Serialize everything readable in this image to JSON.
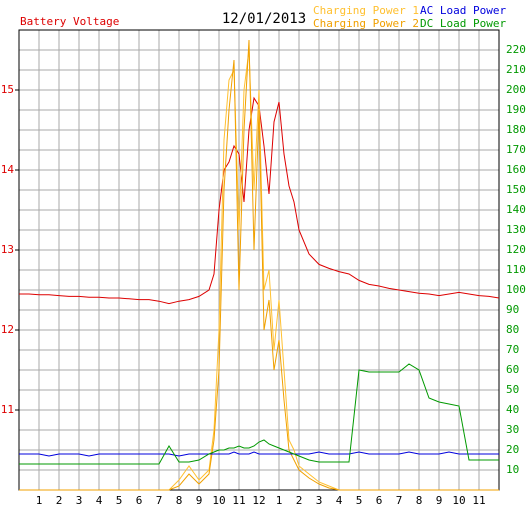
{
  "chart_data": {
    "type": "line",
    "title": "12/01/2013",
    "ylabel": "Battery Voltage",
    "x": [
      0,
      0.5,
      1,
      1.5,
      2,
      2.5,
      3,
      3.5,
      4,
      4.5,
      5,
      5.5,
      6,
      6.5,
      7,
      7.5,
      8,
      8.5,
      9,
      9.5,
      9.75,
      10,
      10.25,
      10.5,
      10.75,
      11,
      11.25,
      11.5,
      11.75,
      12,
      12.25,
      12.5,
      12.75,
      13,
      13.25,
      13.5,
      13.75,
      14,
      14.5,
      15,
      15.5,
      16,
      16.5,
      17,
      17.5,
      18,
      18.5,
      19,
      19.5,
      20,
      20.5,
      21,
      21.5,
      22,
      22.5,
      23,
      23.5,
      24
    ],
    "series": [
      {
        "name": "Battery Voltage",
        "color": "#dd0000",
        "axis": "y",
        "values": [
          12.45,
          12.45,
          12.44,
          12.44,
          12.43,
          12.42,
          12.42,
          12.41,
          12.41,
          12.4,
          12.4,
          12.39,
          12.38,
          12.38,
          12.36,
          12.33,
          12.36,
          12.38,
          12.42,
          12.5,
          12.7,
          13.5,
          14.0,
          14.1,
          14.3,
          14.2,
          13.6,
          14.5,
          14.9,
          14.8,
          14.3,
          13.7,
          14.6,
          14.85,
          14.2,
          13.8,
          13.6,
          13.25,
          12.95,
          12.82,
          12.77,
          12.73,
          12.7,
          12.62,
          12.57,
          12.55,
          12.52,
          12.5,
          12.48,
          12.46,
          12.45,
          12.43,
          12.45,
          12.47,
          12.45,
          12.43,
          12.42,
          12.4
        ]
      },
      {
        "name": "Charging Power 1",
        "color": "#ffc030",
        "axis": "y2",
        "values": [
          0,
          0,
          0,
          0,
          0,
          0,
          0,
          0,
          0,
          0,
          0,
          0,
          0,
          0,
          0,
          0,
          5,
          12,
          5,
          10,
          30,
          80,
          175,
          205,
          210,
          130,
          200,
          220,
          150,
          200,
          100,
          110,
          70,
          95,
          60,
          25,
          20,
          12,
          8,
          4,
          2,
          0,
          0,
          0,
          0,
          0,
          0,
          0,
          0,
          0,
          0,
          0,
          0,
          0,
          0,
          0,
          0,
          0
        ]
      },
      {
        "name": "Charging Power 2",
        "color": "#f0a000",
        "axis": "y2",
        "values": [
          0,
          0,
          0,
          0,
          0,
          0,
          0,
          0,
          0,
          0,
          0,
          0,
          0,
          0,
          0,
          0,
          2,
          8,
          3,
          8,
          25,
          60,
          150,
          190,
          215,
          100,
          180,
          225,
          120,
          190,
          80,
          95,
          60,
          75,
          45,
          20,
          15,
          10,
          6,
          3,
          1,
          0,
          0,
          0,
          0,
          0,
          0,
          0,
          0,
          0,
          0,
          0,
          0,
          0,
          0,
          0,
          0,
          0
        ]
      },
      {
        "name": "AC Load Power",
        "color": "#0000dd",
        "axis": "y2",
        "values": [
          18,
          18,
          18,
          17,
          18,
          18,
          18,
          17,
          18,
          18,
          18,
          18,
          18,
          18,
          18,
          18,
          17,
          18,
          18,
          18,
          18,
          18,
          18,
          18,
          19,
          18,
          18,
          18,
          19,
          18,
          18,
          18,
          18,
          18,
          18,
          18,
          18,
          18,
          18,
          19,
          18,
          18,
          18,
          19,
          18,
          18,
          18,
          18,
          19,
          18,
          18,
          18,
          19,
          18,
          18,
          18,
          18,
          18
        ]
      },
      {
        "name": "DC Load Power",
        "color": "#009900",
        "axis": "y2",
        "values": [
          13,
          13,
          13,
          13,
          13,
          13,
          13,
          13,
          13,
          13,
          13,
          13,
          13,
          13,
          13,
          22,
          14,
          14,
          15,
          18,
          19,
          20,
          20,
          21,
          21,
          22,
          21,
          21,
          22,
          24,
          25,
          23,
          22,
          21,
          20,
          19,
          18,
          17,
          15,
          14,
          14,
          14,
          14,
          60,
          59,
          59,
          59,
          59,
          63,
          60,
          46,
          44,
          43,
          42,
          15,
          15,
          15,
          15
        ]
      }
    ],
    "xlim": [
      0,
      24
    ],
    "xticks": [
      1,
      2,
      3,
      4,
      5,
      6,
      7,
      8,
      9,
      10,
      11,
      12,
      {
        "value": 13,
        "label": "1"
      },
      {
        "value": 14,
        "label": "2"
      },
      {
        "value": 15,
        "label": "3"
      },
      {
        "value": 16,
        "label": "4"
      },
      {
        "value": 17,
        "label": "5"
      },
      {
        "value": 18,
        "label": "6"
      },
      {
        "value": 19,
        "label": "7"
      },
      {
        "value": 20,
        "label": "8"
      },
      {
        "value": 21,
        "label": "9"
      },
      {
        "value": 22,
        "label": "10"
      },
      {
        "value": 23,
        "label": "11"
      }
    ],
    "ylim": [
      10,
      15.75
    ],
    "yticks": [
      11,
      12,
      13,
      14,
      15
    ],
    "y2lim": [
      0,
      230
    ],
    "y2ticks": [
      10,
      20,
      30,
      40,
      50,
      60,
      70,
      80,
      90,
      100,
      110,
      120,
      130,
      140,
      150,
      160,
      170,
      180,
      190,
      200,
      210,
      220
    ],
    "grid": true
  }
}
